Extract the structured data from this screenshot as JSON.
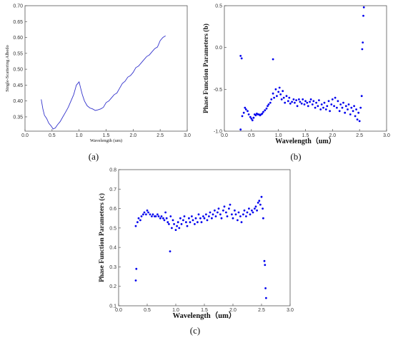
{
  "chart_data": [
    {
      "id": "a",
      "type": "line",
      "panel_label": "(a)",
      "xlabel": "Wavelength (um)",
      "ylabel": "Single-Scattering Albedo",
      "xlim": [
        0.0,
        3.0
      ],
      "ylim": [
        0.305,
        0.7
      ],
      "xticks": [
        "0.0",
        "0.5",
        "1.0",
        "1.5",
        "2.0",
        "2.5",
        "3.0"
      ],
      "yticks": [
        "0.35",
        "0.40",
        "0.45",
        "0.50",
        "0.55",
        "0.60",
        "0.65",
        "0.70"
      ],
      "color": "#3333cc",
      "x": [
        0.3,
        0.33,
        0.36,
        0.4,
        0.44,
        0.48,
        0.52,
        0.56,
        0.6,
        0.65,
        0.7,
        0.75,
        0.8,
        0.85,
        0.9,
        0.95,
        1.0,
        1.03,
        1.06,
        1.1,
        1.15,
        1.2,
        1.25,
        1.3,
        1.35,
        1.4,
        1.45,
        1.5,
        1.55,
        1.6,
        1.65,
        1.7,
        1.75,
        1.8,
        1.85,
        1.9,
        1.95,
        2.0,
        2.05,
        2.1,
        2.15,
        2.2,
        2.25,
        2.3,
        2.35,
        2.4,
        2.45,
        2.5,
        2.55,
        2.6
      ],
      "y": [
        0.405,
        0.375,
        0.355,
        0.345,
        0.33,
        0.322,
        0.312,
        0.315,
        0.325,
        0.335,
        0.35,
        0.365,
        0.38,
        0.4,
        0.42,
        0.45,
        0.46,
        0.44,
        0.42,
        0.4,
        0.385,
        0.378,
        0.375,
        0.37,
        0.372,
        0.375,
        0.38,
        0.395,
        0.4,
        0.41,
        0.42,
        0.425,
        0.44,
        0.455,
        0.462,
        0.475,
        0.48,
        0.49,
        0.505,
        0.51,
        0.52,
        0.53,
        0.54,
        0.545,
        0.555,
        0.565,
        0.57,
        0.59,
        0.6,
        0.605
      ]
    },
    {
      "id": "b",
      "type": "scatter",
      "panel_label": "(b)",
      "xlabel": "Wavelength（um）",
      "ylabel": "Phase Function Parameters (b)",
      "xlim": [
        0.0,
        3.0
      ],
      "ylim": [
        -1.0,
        0.5
      ],
      "xticks": [
        "0.0",
        "0.5",
        "1.0",
        "1.5",
        "2.0",
        "2.5",
        "3.0"
      ],
      "yticks": [
        "-1.0",
        "-0.5",
        "0.0",
        "0.5"
      ],
      "color": "#0000ee",
      "points": [
        [
          0.3,
          -0.1
        ],
        [
          0.32,
          -0.13
        ],
        [
          0.3,
          -0.98
        ],
        [
          0.33,
          -0.82
        ],
        [
          0.36,
          -0.78
        ],
        [
          0.38,
          -0.72
        ],
        [
          0.4,
          -0.74
        ],
        [
          0.43,
          -0.76
        ],
        [
          0.45,
          -0.8
        ],
        [
          0.48,
          -0.83
        ],
        [
          0.5,
          -0.85
        ],
        [
          0.52,
          -0.87
        ],
        [
          0.54,
          -0.84
        ],
        [
          0.56,
          -0.8
        ],
        [
          0.58,
          -0.81
        ],
        [
          0.6,
          -0.79
        ],
        [
          0.62,
          -0.8
        ],
        [
          0.64,
          -0.8
        ],
        [
          0.66,
          -0.81
        ],
        [
          0.68,
          -0.8
        ],
        [
          0.7,
          -0.79
        ],
        [
          0.72,
          -0.77
        ],
        [
          0.75,
          -0.75
        ],
        [
          0.78,
          -0.73
        ],
        [
          0.8,
          -0.7
        ],
        [
          0.82,
          -0.68
        ],
        [
          0.85,
          -0.66
        ],
        [
          0.87,
          -0.62
        ],
        [
          0.9,
          -0.14
        ],
        [
          0.9,
          -0.55
        ],
        [
          0.92,
          -0.6
        ],
        [
          0.95,
          -0.5
        ],
        [
          0.97,
          -0.58
        ],
        [
          1.0,
          -0.53
        ],
        [
          1.02,
          -0.48
        ],
        [
          1.04,
          -0.56
        ],
        [
          1.06,
          -0.62
        ],
        [
          1.08,
          -0.52
        ],
        [
          1.1,
          -0.6
        ],
        [
          1.12,
          -0.66
        ],
        [
          1.15,
          -0.58
        ],
        [
          1.18,
          -0.64
        ],
        [
          1.2,
          -0.6
        ],
        [
          1.22,
          -0.67
        ],
        [
          1.25,
          -0.65
        ],
        [
          1.28,
          -0.62
        ],
        [
          1.3,
          -0.66
        ],
        [
          1.33,
          -0.63
        ],
        [
          1.35,
          -0.7
        ],
        [
          1.38,
          -0.62
        ],
        [
          1.4,
          -0.65
        ],
        [
          1.43,
          -0.67
        ],
        [
          1.45,
          -0.62
        ],
        [
          1.48,
          -0.68
        ],
        [
          1.5,
          -0.64
        ],
        [
          1.53,
          -0.66
        ],
        [
          1.55,
          -0.7
        ],
        [
          1.58,
          -0.65
        ],
        [
          1.6,
          -0.62
        ],
        [
          1.63,
          -0.68
        ],
        [
          1.65,
          -0.64
        ],
        [
          1.68,
          -0.72
        ],
        [
          1.7,
          -0.66
        ],
        [
          1.73,
          -0.7
        ],
        [
          1.75,
          -0.63
        ],
        [
          1.78,
          -0.74
        ],
        [
          1.8,
          -0.68
        ],
        [
          1.83,
          -0.72
        ],
        [
          1.85,
          -0.66
        ],
        [
          1.88,
          -0.74
        ],
        [
          1.9,
          -0.7
        ],
        [
          1.93,
          -0.64
        ],
        [
          1.95,
          -0.76
        ],
        [
          1.98,
          -0.68
        ],
        [
          2.0,
          -0.62
        ],
        [
          2.03,
          -0.7
        ],
        [
          2.05,
          -0.6
        ],
        [
          2.08,
          -0.72
        ],
        [
          2.1,
          -0.64
        ],
        [
          2.13,
          -0.76
        ],
        [
          2.15,
          -0.68
        ],
        [
          2.18,
          -0.72
        ],
        [
          2.2,
          -0.66
        ],
        [
          2.23,
          -0.78
        ],
        [
          2.25,
          -0.7
        ],
        [
          2.28,
          -0.74
        ],
        [
          2.3,
          -0.68
        ],
        [
          2.33,
          -0.8
        ],
        [
          2.35,
          -0.72
        ],
        [
          2.38,
          -0.76
        ],
        [
          2.4,
          -0.7
        ],
        [
          2.42,
          -0.82
        ],
        [
          2.44,
          -0.74
        ],
        [
          2.46,
          -0.86
        ],
        [
          2.48,
          -0.78
        ],
        [
          2.5,
          -0.88
        ],
        [
          2.52,
          -0.72
        ],
        [
          2.54,
          -0.58
        ],
        [
          2.55,
          -0.02
        ],
        [
          2.56,
          0.06
        ],
        [
          2.57,
          0.38
        ],
        [
          2.58,
          0.48
        ]
      ]
    },
    {
      "id": "c",
      "type": "scatter",
      "panel_label": "(c)",
      "xlabel": "Wavelength（um）",
      "ylabel": "Phase Function Parameters (c)",
      "xlim": [
        0.0,
        3.0
      ],
      "ylim": [
        0.1,
        0.8
      ],
      "xticks": [
        "0.0",
        "0.5",
        "1.0",
        "1.5",
        "2.0",
        "2.5",
        "3.0"
      ],
      "yticks": [
        "0.1",
        "0.2",
        "0.3",
        "0.4",
        "0.5",
        "0.6",
        "0.7",
        "0.8"
      ],
      "color": "#0000ee",
      "points": [
        [
          0.3,
          0.23
        ],
        [
          0.31,
          0.29
        ],
        [
          0.3,
          0.51
        ],
        [
          0.33,
          0.53
        ],
        [
          0.35,
          0.55
        ],
        [
          0.38,
          0.54
        ],
        [
          0.4,
          0.56
        ],
        [
          0.43,
          0.57
        ],
        [
          0.45,
          0.58
        ],
        [
          0.48,
          0.57
        ],
        [
          0.5,
          0.59
        ],
        [
          0.52,
          0.58
        ],
        [
          0.55,
          0.57
        ],
        [
          0.58,
          0.56
        ],
        [
          0.6,
          0.57
        ],
        [
          0.63,
          0.56
        ],
        [
          0.65,
          0.56
        ],
        [
          0.68,
          0.57
        ],
        [
          0.7,
          0.56
        ],
        [
          0.73,
          0.55
        ],
        [
          0.75,
          0.56
        ],
        [
          0.78,
          0.55
        ],
        [
          0.8,
          0.54
        ],
        [
          0.82,
          0.58
        ],
        [
          0.84,
          0.55
        ],
        [
          0.86,
          0.53
        ],
        [
          0.88,
          0.52
        ],
        [
          0.9,
          0.38
        ],
        [
          0.91,
          0.56
        ],
        [
          0.93,
          0.5
        ],
        [
          0.95,
          0.54
        ],
        [
          0.97,
          0.52
        ],
        [
          1.0,
          0.49
        ],
        [
          1.02,
          0.51
        ],
        [
          1.04,
          0.53
        ],
        [
          1.06,
          0.5
        ],
        [
          1.08,
          0.55
        ],
        [
          1.1,
          0.52
        ],
        [
          1.13,
          0.54
        ],
        [
          1.15,
          0.56
        ],
        [
          1.18,
          0.53
        ],
        [
          1.2,
          0.51
        ],
        [
          1.23,
          0.55
        ],
        [
          1.25,
          0.53
        ],
        [
          1.28,
          0.56
        ],
        [
          1.3,
          0.54
        ],
        [
          1.33,
          0.52
        ],
        [
          1.35,
          0.55
        ],
        [
          1.38,
          0.53
        ],
        [
          1.4,
          0.57
        ],
        [
          1.43,
          0.55
        ],
        [
          1.45,
          0.53
        ],
        [
          1.48,
          0.56
        ],
        [
          1.5,
          0.55
        ],
        [
          1.53,
          0.57
        ],
        [
          1.55,
          0.54
        ],
        [
          1.58,
          0.56
        ],
        [
          1.6,
          0.58
        ],
        [
          1.63,
          0.55
        ],
        [
          1.65,
          0.57
        ],
        [
          1.68,
          0.59
        ],
        [
          1.7,
          0.56
        ],
        [
          1.73,
          0.58
        ],
        [
          1.75,
          0.6
        ],
        [
          1.78,
          0.57
        ],
        [
          1.8,
          0.55
        ],
        [
          1.83,
          0.59
        ],
        [
          1.85,
          0.61
        ],
        [
          1.88,
          0.58
        ],
        [
          1.9,
          0.56
        ],
        [
          1.93,
          0.6
        ],
        [
          1.95,
          0.62
        ],
        [
          1.98,
          0.57
        ],
        [
          2.0,
          0.55
        ],
        [
          2.03,
          0.59
        ],
        [
          2.05,
          0.57
        ],
        [
          2.08,
          0.54
        ],
        [
          2.1,
          0.58
        ],
        [
          2.13,
          0.56
        ],
        [
          2.15,
          0.53
        ],
        [
          2.18,
          0.57
        ],
        [
          2.2,
          0.59
        ],
        [
          2.23,
          0.56
        ],
        [
          2.25,
          0.58
        ],
        [
          2.28,
          0.6
        ],
        [
          2.3,
          0.57
        ],
        [
          2.33,
          0.59
        ],
        [
          2.35,
          0.58
        ],
        [
          2.38,
          0.6
        ],
        [
          2.4,
          0.61
        ],
        [
          2.42,
          0.59
        ],
        [
          2.44,
          0.63
        ],
        [
          2.46,
          0.64
        ],
        [
          2.48,
          0.62
        ],
        [
          2.5,
          0.66
        ],
        [
          2.52,
          0.6
        ],
        [
          2.53,
          0.55
        ],
        [
          2.55,
          0.33
        ],
        [
          2.56,
          0.31
        ],
        [
          2.57,
          0.19
        ],
        [
          2.58,
          0.14
        ]
      ]
    }
  ]
}
